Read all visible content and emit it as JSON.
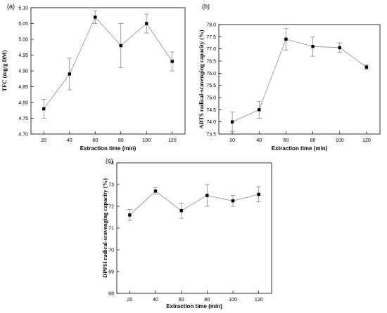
{
  "chart_data": [
    {
      "type": "line",
      "panel_label": "(a)",
      "xlabel": "Extraction time (min)",
      "ylabel": "TFC (mg/g  DM)",
      "x": [
        20,
        40,
        60,
        80,
        100,
        120
      ],
      "y": [
        4.78,
        4.89,
        5.07,
        4.98,
        5.05,
        4.93
      ],
      "err": [
        0.03,
        0.05,
        0.02,
        0.07,
        0.03,
        0.03
      ],
      "xlim": [
        10,
        130
      ],
      "ylim": [
        4.7,
        5.1
      ],
      "xticks": [
        "20",
        "40",
        "60",
        "80",
        "100",
        "120"
      ],
      "yticks": [
        "4.70",
        "4.75",
        "4.80",
        "4.85",
        "4.90",
        "4.95",
        "5.00",
        "5.05",
        "5.10"
      ],
      "grid": false
    },
    {
      "type": "line",
      "panel_label": "(b)",
      "xlabel": "Extraction time (min)",
      "ylabel": "ABTS radical-scavenging capacity (%)",
      "x": [
        20,
        40,
        60,
        80,
        100,
        120
      ],
      "y": [
        74.0,
        74.5,
        77.4,
        77.1,
        77.05,
        76.25
      ],
      "err": [
        0.4,
        0.35,
        0.45,
        0.4,
        0.2,
        0.1
      ],
      "xlim": [
        10,
        130
      ],
      "ylim": [
        73.5,
        78.0
      ],
      "xticks": [
        "20",
        "40",
        "60",
        "80",
        "100",
        "120"
      ],
      "yticks": [
        "73.5",
        "74.0",
        "74.5",
        "75.0",
        "75.5",
        "76.0",
        "76.5",
        "77.0",
        "77.5",
        "78.0"
      ],
      "grid": false
    },
    {
      "type": "line",
      "panel_label": "(c)",
      "xlabel": "Extraction time (min)",
      "ylabel": "DPPH radical-scavenging capacity (%)",
      "x": [
        20,
        40,
        60,
        80,
        100,
        120
      ],
      "y": [
        71.6,
        72.7,
        71.8,
        72.5,
        72.25,
        72.55
      ],
      "err": [
        0.25,
        0.15,
        0.35,
        0.5,
        0.25,
        0.35
      ],
      "xlim": [
        10,
        130
      ],
      "ylim": [
        68,
        74
      ],
      "xticks": [
        "20",
        "40",
        "60",
        "80",
        "100",
        "120"
      ],
      "yticks": [
        "68",
        "69",
        "70",
        "71",
        "72",
        "73",
        "74"
      ],
      "grid": false
    }
  ]
}
